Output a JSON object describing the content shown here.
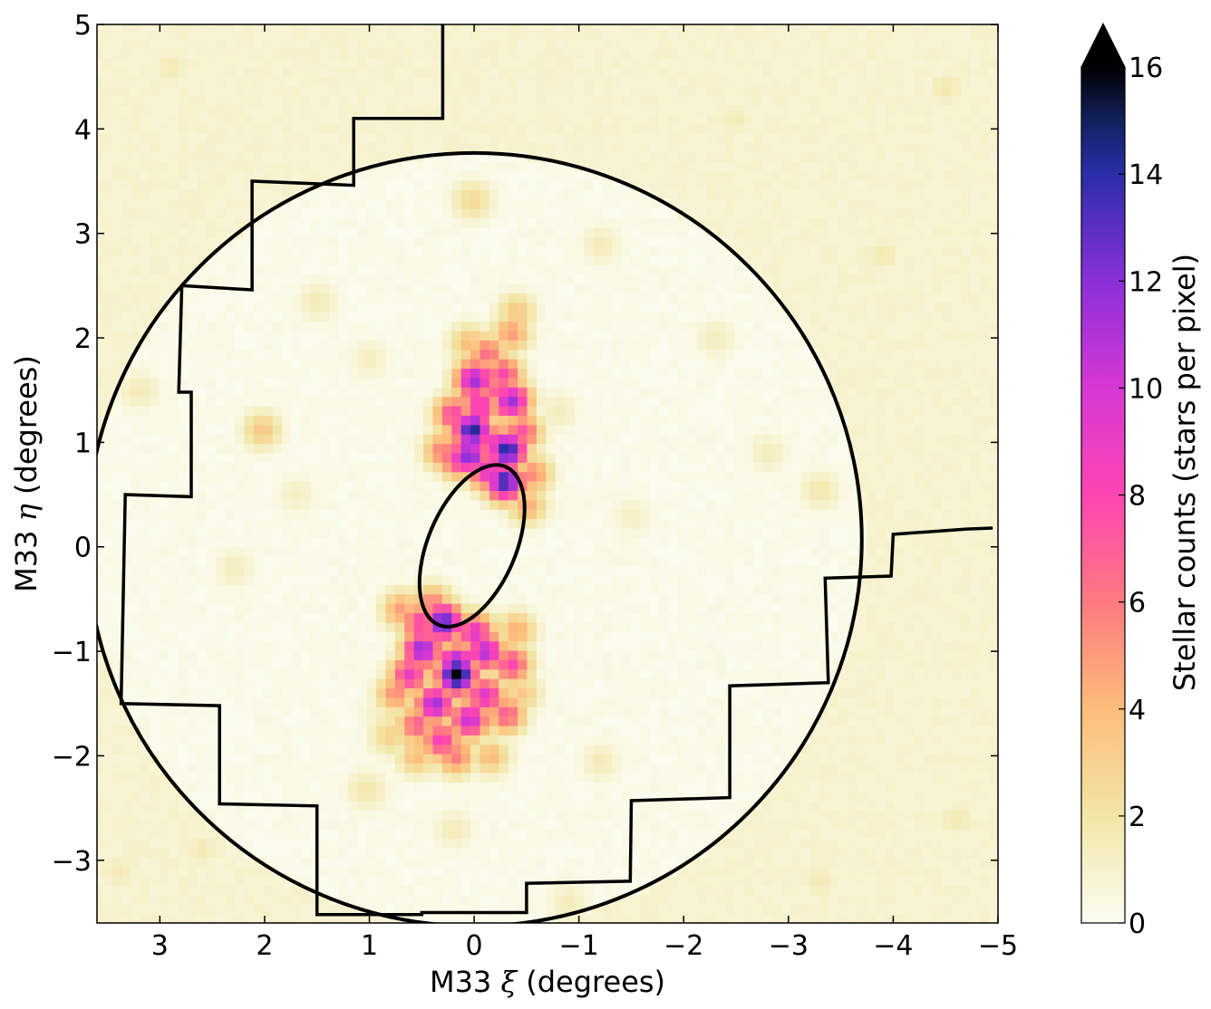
{
  "chart_data": {
    "type": "heatmap",
    "xlabel_parts": [
      "M33 ",
      "ξ",
      " (degrees)"
    ],
    "ylabel_parts": [
      "M33 ",
      "η",
      " (degrees)"
    ],
    "colorbar_label": "Stellar counts (stars per pixel)",
    "xlim": [
      3.6,
      -5
    ],
    "ylim": [
      -3.6,
      5
    ],
    "x_ticks": [
      3,
      2,
      1,
      0,
      -1,
      -2,
      -3,
      -4,
      -5
    ],
    "x_tick_labels": [
      "3",
      "2",
      "1",
      "0",
      "−1",
      "−2",
      "−3",
      "−4",
      "−5"
    ],
    "y_ticks": [
      -3,
      -2,
      -1,
      0,
      1,
      2,
      3,
      4,
      5
    ],
    "y_tick_labels": [
      "−3",
      "−2",
      "−1",
      "0",
      "1",
      "2",
      "3",
      "4",
      "5"
    ],
    "colorbar_range": [
      0,
      16
    ],
    "colorbar_ticks": [
      0,
      2,
      4,
      6,
      8,
      10,
      12,
      14,
      16
    ],
    "colorbar_tick_labels": [
      "0",
      "2",
      "4",
      "6",
      "8",
      "10",
      "12",
      "14",
      "16"
    ],
    "colorbar_extend": "max",
    "colormap_stops": [
      {
        "value": 0,
        "color": "#fbfdf2"
      },
      {
        "value": 2,
        "color": "#f2e6a6"
      },
      {
        "value": 4,
        "color": "#fdbd7a"
      },
      {
        "value": 6,
        "color": "#fd7a80"
      },
      {
        "value": 8,
        "color": "#fd45b2"
      },
      {
        "value": 10,
        "color": "#d737d4"
      },
      {
        "value": 12,
        "color": "#8a30d9"
      },
      {
        "value": 14,
        "color": "#2a2da8"
      },
      {
        "value": 15,
        "color": "#12215e"
      },
      {
        "value": 16,
        "color": "#000000"
      }
    ],
    "background_level": 0.9,
    "inner_level": 0.25,
    "outer_circle": {
      "center": [
        0,
        0.07
      ],
      "radius": 3.7
    },
    "inner_ellipse": {
      "center": [
        0.02,
        0.01
      ],
      "semi_major": 0.82,
      "semi_minor": 0.42,
      "angle_deg": 113
    },
    "footprint_outline": [
      [
        -4.95,
        0.18
      ],
      [
        -4.7,
        0.17
      ],
      [
        -4.0,
        0.12
      ],
      [
        -3.98,
        -0.28
      ],
      [
        -3.35,
        -0.3
      ],
      [
        -3.38,
        -1.3
      ],
      [
        -2.44,
        -1.33
      ],
      [
        -2.44,
        -2.4
      ],
      [
        -1.5,
        -2.43
      ],
      [
        -1.49,
        -3.2
      ],
      [
        -0.5,
        -3.22
      ],
      [
        -0.5,
        -3.5
      ],
      [
        0.5,
        -3.5
      ],
      [
        0.5,
        -3.52
      ],
      [
        1.5,
        -3.52
      ],
      [
        1.5,
        -2.48
      ],
      [
        2.43,
        -2.46
      ],
      [
        2.43,
        -1.52
      ],
      [
        3.37,
        -1.5
      ],
      [
        3.33,
        0.5
      ],
      [
        2.7,
        0.48
      ],
      [
        2.7,
        1.48
      ],
      [
        2.82,
        1.48
      ],
      [
        2.79,
        2.5
      ],
      [
        2.12,
        2.46
      ],
      [
        2.12,
        3.5
      ],
      [
        1.15,
        3.46
      ],
      [
        1.15,
        4.1
      ],
      [
        0.3,
        4.1
      ],
      [
        0.3,
        5.0
      ]
    ],
    "star_counts": [
      {
        "x": 0.02,
        "y": 1.12,
        "value": 14.5
      },
      {
        "x": -0.31,
        "y": 0.93,
        "value": 14.5
      },
      {
        "x": -0.29,
        "y": 0.63,
        "value": 14.0
      },
      {
        "x": 0.05,
        "y": 0.88,
        "value": 12.5
      },
      {
        "x": 0.0,
        "y": 1.6,
        "value": 11.5
      },
      {
        "x": -0.35,
        "y": 1.4,
        "value": 11.5
      },
      {
        "x": -0.18,
        "y": 0.99,
        "value": 9.0
      },
      {
        "x": -0.12,
        "y": 0.73,
        "value": 9.5
      },
      {
        "x": 0.15,
        "y": 0.85,
        "value": 9.0
      },
      {
        "x": -0.05,
        "y": 1.35,
        "value": 9.0
      },
      {
        "x": -0.27,
        "y": 1.65,
        "value": 8.0
      },
      {
        "x": -0.45,
        "y": 1.1,
        "value": 7.5
      },
      {
        "x": 0.2,
        "y": 1.27,
        "value": 8.0
      },
      {
        "x": -0.12,
        "y": 1.85,
        "value": 6.5
      },
      {
        "x": -0.35,
        "y": 2.05,
        "value": 5.0
      },
      {
        "x": 0.3,
        "y": 0.92,
        "value": 6.0
      },
      {
        "x": -0.55,
        "y": 0.7,
        "value": 5.5
      },
      {
        "x": -0.5,
        "y": 0.4,
        "value": 4.5
      },
      {
        "x": -0.4,
        "y": 2.25,
        "value": 3.5
      },
      {
        "x": 0.05,
        "y": 1.95,
        "value": 4.0
      },
      {
        "x": -0.2,
        "y": 1.5,
        "value": 7.0
      },
      {
        "x": 0.3,
        "y": -0.72,
        "value": 13.5
      },
      {
        "x": 0.17,
        "y": -1.22,
        "value": 16.5
      },
      {
        "x": 0.5,
        "y": -0.98,
        "value": 12.0
      },
      {
        "x": 0.17,
        "y": -1.12,
        "value": 13.0
      },
      {
        "x": 0.38,
        "y": -1.5,
        "value": 11.5
      },
      {
        "x": -0.1,
        "y": -1.0,
        "value": 11.0
      },
      {
        "x": 0.05,
        "y": -1.65,
        "value": 10.5
      },
      {
        "x": -0.1,
        "y": -1.42,
        "value": 9.5
      },
      {
        "x": 0.62,
        "y": -1.22,
        "value": 9.0
      },
      {
        "x": 0.52,
        "y": -0.72,
        "value": 8.0
      },
      {
        "x": 0.0,
        "y": -0.82,
        "value": 9.5
      },
      {
        "x": 0.32,
        "y": -1.85,
        "value": 8.5
      },
      {
        "x": -0.35,
        "y": -1.12,
        "value": 8.0
      },
      {
        "x": 0.55,
        "y": -1.7,
        "value": 7.0
      },
      {
        "x": -0.3,
        "y": -1.6,
        "value": 7.0
      },
      {
        "x": 0.18,
        "y": -2.0,
        "value": 6.0
      },
      {
        "x": 0.75,
        "y": -1.4,
        "value": 5.5
      },
      {
        "x": 0.7,
        "y": -0.6,
        "value": 5.0
      },
      {
        "x": -0.4,
        "y": -0.8,
        "value": 4.5
      },
      {
        "x": 0.55,
        "y": -2.0,
        "value": 4.0
      },
      {
        "x": -0.15,
        "y": -2.0,
        "value": 4.0
      },
      {
        "x": 0.4,
        "y": -0.55,
        "value": 6.0
      },
      {
        "x": -0.45,
        "y": -1.4,
        "value": 3.5
      },
      {
        "x": 0.8,
        "y": -1.8,
        "value": 3.0
      },
      {
        "x": 2.03,
        "y": 1.12,
        "value": 3.5
      },
      {
        "x": 0.02,
        "y": 3.32,
        "value": 2.6
      },
      {
        "x": 1.03,
        "y": -2.32,
        "value": 1.9
      },
      {
        "x": -1.2,
        "y": -2.05,
        "value": 1.5
      },
      {
        "x": -3.3,
        "y": 0.55,
        "value": 1.8
      },
      {
        "x": 1.5,
        "y": 2.35,
        "value": 1.6
      },
      {
        "x": -4.5,
        "y": 4.4,
        "value": 1.8
      },
      {
        "x": -2.5,
        "y": 4.1,
        "value": 1.5
      },
      {
        "x": -1.2,
        "y": 2.9,
        "value": 1.5
      },
      {
        "x": -2.3,
        "y": 2.0,
        "value": 1.4
      },
      {
        "x": 2.3,
        "y": -0.2,
        "value": 1.4
      },
      {
        "x": 1.0,
        "y": 1.8,
        "value": 1.3
      },
      {
        "x": -2.8,
        "y": 0.9,
        "value": 1.4
      },
      {
        "x": 0.2,
        "y": -2.7,
        "value": 1.5
      },
      {
        "x": 3.2,
        "y": 1.5,
        "value": 1.6
      },
      {
        "x": 3.4,
        "y": -3.1,
        "value": 1.6
      },
      {
        "x": -4.6,
        "y": -2.6,
        "value": 1.7
      },
      {
        "x": -3.9,
        "y": 2.8,
        "value": 1.7
      },
      {
        "x": 2.9,
        "y": 4.6,
        "value": 1.6
      },
      {
        "x": -0.9,
        "y": -3.4,
        "value": 1.5
      },
      {
        "x": 2.6,
        "y": -2.9,
        "value": 1.6
      },
      {
        "x": -3.3,
        "y": -3.2,
        "value": 1.6
      },
      {
        "x": -1.5,
        "y": 0.3,
        "value": 1.2
      },
      {
        "x": 1.7,
        "y": 0.5,
        "value": 1.2
      },
      {
        "x": -0.8,
        "y": 1.3,
        "value": 1.4
      },
      {
        "x": 0.9,
        "y": -1.6,
        "value": 1.3
      }
    ]
  }
}
